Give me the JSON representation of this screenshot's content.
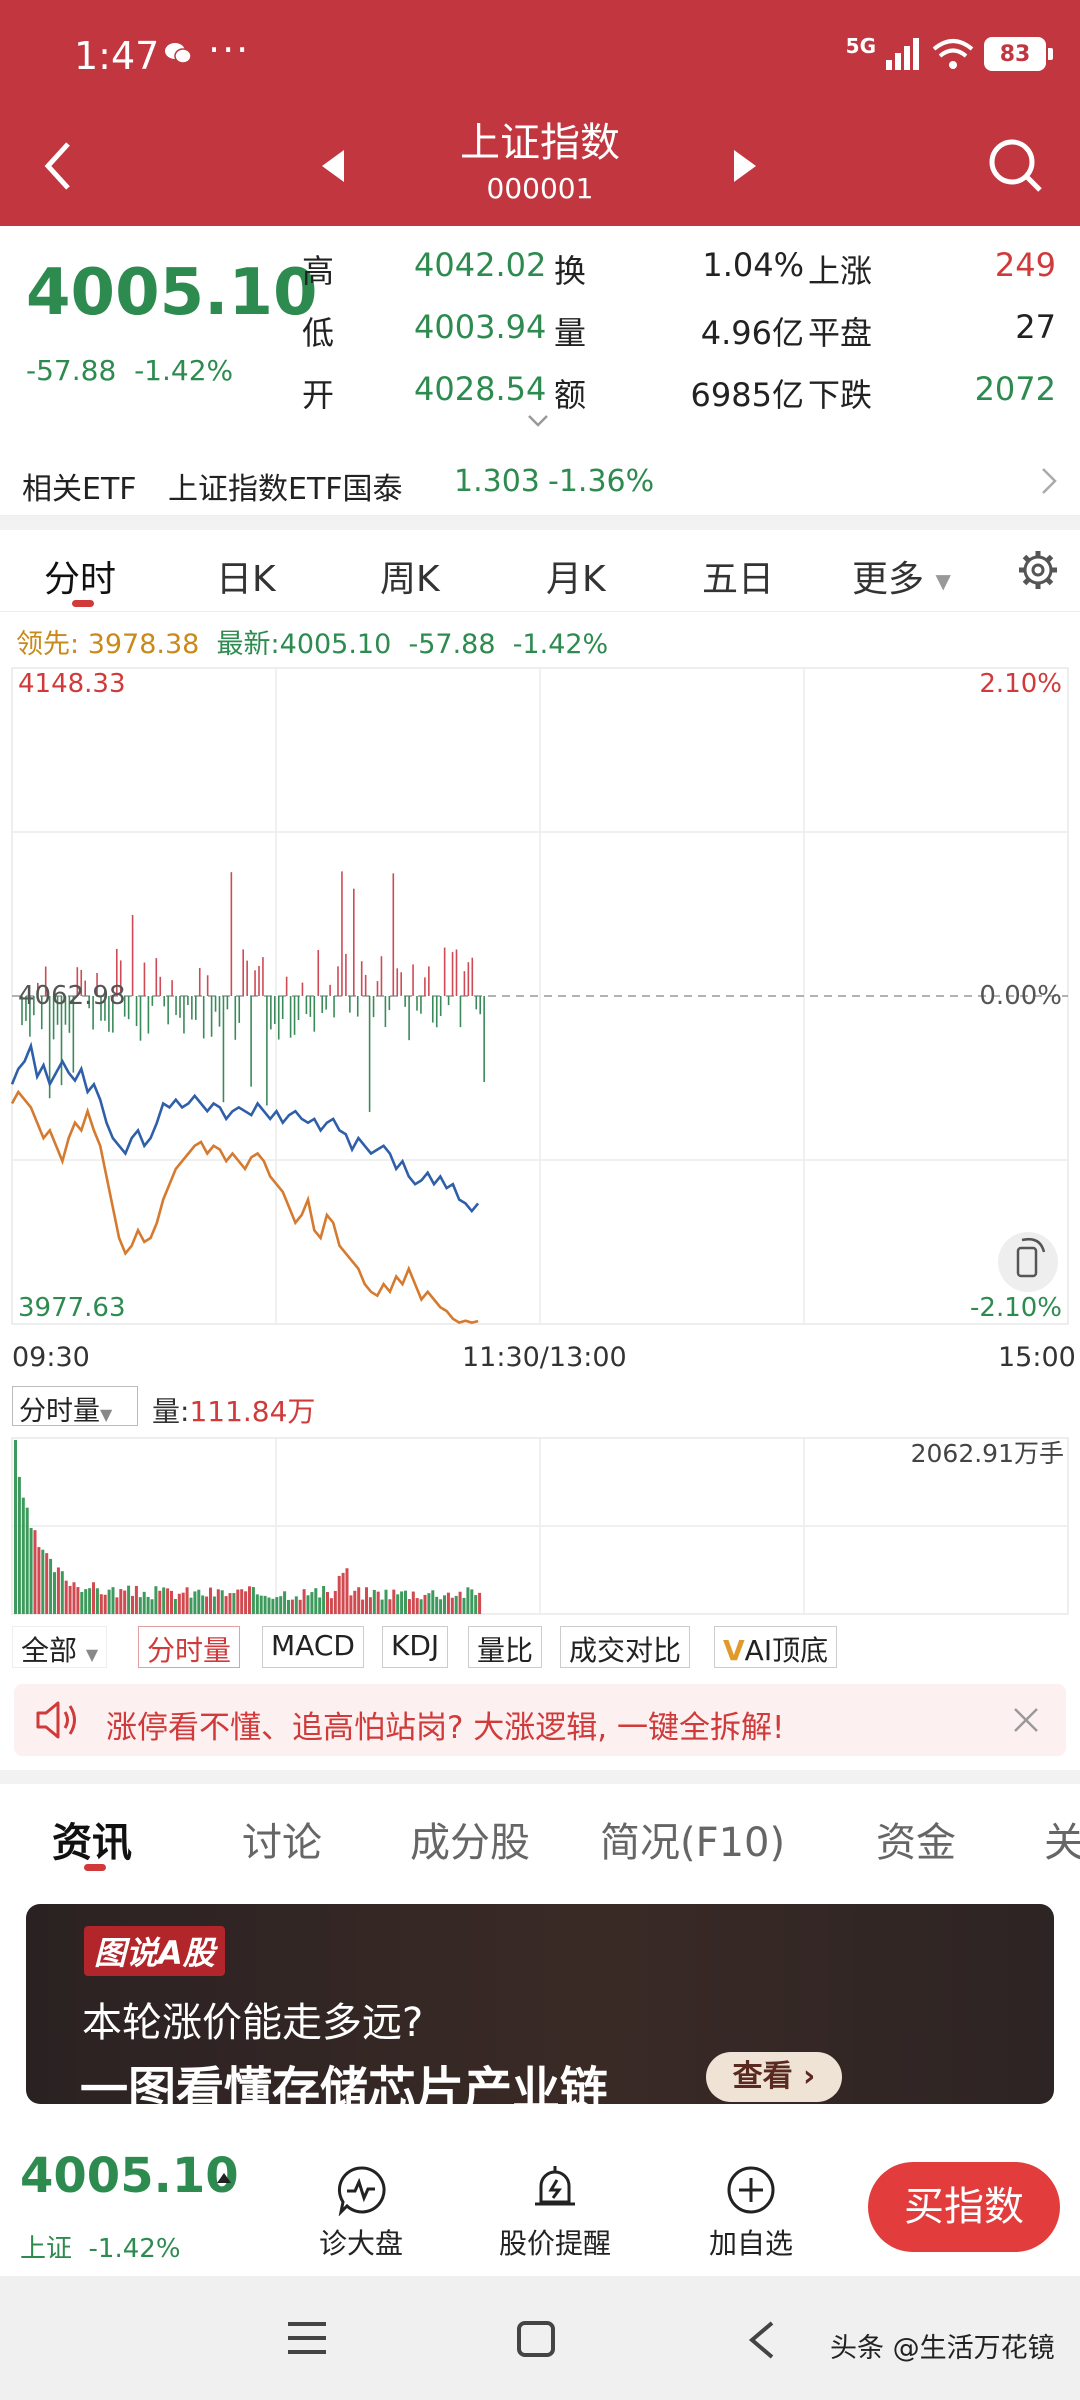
{
  "status": {
    "time": "1:47",
    "dots": "···",
    "signal": "5G",
    "battery": "83"
  },
  "header": {
    "title": "上证指数",
    "code": "000001"
  },
  "quote": {
    "price": "4005.10",
    "change": "-57.88",
    "change_pct": "-1.42%",
    "stats": [
      {
        "label": "高",
        "value": "4042.02"
      },
      {
        "label": "低",
        "value": "4003.94"
      },
      {
        "label": "开",
        "value": "4028.54"
      }
    ],
    "stats2": [
      {
        "label": "换",
        "value": "1.04%"
      },
      {
        "label": "量",
        "value": "4.96亿"
      },
      {
        "label": "额",
        "value": "6985亿"
      }
    ],
    "breadth": [
      {
        "label": "上涨",
        "value": "249"
      },
      {
        "label": "平盘",
        "value": "27"
      },
      {
        "label": "下跌",
        "value": "2072"
      }
    ]
  },
  "etf": {
    "label": "相关ETF",
    "name": "上证指数ETF国泰",
    "price": "1.303",
    "pct": "-1.36%"
  },
  "chart_tabs": [
    "分时",
    "日K",
    "周K",
    "月K",
    "五日",
    "更多"
  ],
  "info_line": {
    "lead_label": "领先:",
    "lead_value": "3978.38",
    "latest_label": "最新:",
    "latest_value": "4005.10",
    "latest_change": "-57.88",
    "latest_pct": "-1.42%"
  },
  "chart_data": {
    "type": "line",
    "y_top_label": "4148.33",
    "y_mid_label": "4062.98",
    "y_bot_label": "3977.63",
    "pct_top_label": "2.10%",
    "pct_mid_label": "0.00%",
    "pct_bot_label": "-2.10%",
    "ylim": [
      3977.63,
      4148.33
    ],
    "prev_close": 4062.98,
    "x_labels": [
      "09:30",
      "11:30/13:00",
      "15:00"
    ],
    "series": [
      {
        "color": "#2f5fa8",
        "values": [
          4040,
          4044,
          4046,
          4050,
          4042,
          4045,
          4040,
          4043,
          4046,
          4043,
          4041,
          4044,
          4038,
          4040,
          4036,
          4030,
          4026,
          4024,
          4022,
          4026,
          4028,
          4024,
          4026,
          4030,
          4035,
          4034,
          4036,
          4034,
          4035,
          4037,
          4035,
          4033,
          4035,
          4034,
          4031,
          4033,
          4034,
          4033,
          4032,
          4035,
          4033,
          4031,
          4033,
          4030,
          4032,
          4033,
          4031,
          4030,
          4031,
          4028,
          4030,
          4031,
          4028,
          4027,
          4023,
          4026,
          4024,
          4022,
          4023,
          4024,
          4022,
          4018,
          4020,
          4016,
          4014,
          4015,
          4017,
          4014,
          4016,
          4013,
          4014,
          4010,
          4009,
          4007,
          4009
        ]
      },
      {
        "color": "#d57a2e",
        "values": [
          4035,
          4038,
          4036,
          4034,
          4030,
          4026,
          4028,
          4024,
          4020,
          4026,
          4030,
          4028,
          4033,
          4028,
          4024,
          4016,
          4008,
          4000,
          3996,
          3998,
          4002,
          3999,
          4000,
          4004,
          4010,
          4014,
          4018,
          4020,
          4022,
          4024,
          4025,
          4022,
          4024,
          4023,
          4020,
          4022,
          4020,
          4018,
          4021,
          4022,
          4020,
          4016,
          4014,
          4012,
          4008,
          4004,
          4006,
          4010,
          4002,
          4000,
          4006,
          4004,
          3998,
          3996,
          3994,
          3992,
          3988,
          3986,
          3985,
          3988,
          3986,
          3990,
          3988,
          3992,
          3988,
          3984,
          3986,
          3984,
          3982,
          3981,
          3979,
          3978,
          3978.5,
          3978,
          3978.38
        ]
      }
    ]
  },
  "volume": {
    "selector": "分时量",
    "label": "量:",
    "value": "111.84万",
    "max_label": "2062.91万手"
  },
  "indicators": [
    "全部",
    "分时量",
    "MACD",
    "KDJ",
    "量比",
    "成交对比",
    "AI顶底"
  ],
  "banner": {
    "text": "涨停看不懂、追高怕站岗? 大涨逻辑, 一键全拆解!"
  },
  "news_tabs": [
    "资讯",
    "讨论",
    "成分股",
    "简况(F10)",
    "资金",
    "关"
  ],
  "ad": {
    "badge": "图说A股",
    "line1": "本轮涨价能走多远?",
    "line2": "一图看懂存储芯片产业链",
    "button": "查看"
  },
  "bottom": {
    "price": "4005.10",
    "name": "上证",
    "pct": "-1.42%",
    "buttons": [
      "诊大盘",
      "股价提醒",
      "加自选"
    ],
    "buy": "买指数"
  },
  "watermark": "头条 @生活万花镜",
  "colors": {
    "red": "#d03a3a",
    "green": "#2e8b50",
    "header": "#c1363f"
  }
}
